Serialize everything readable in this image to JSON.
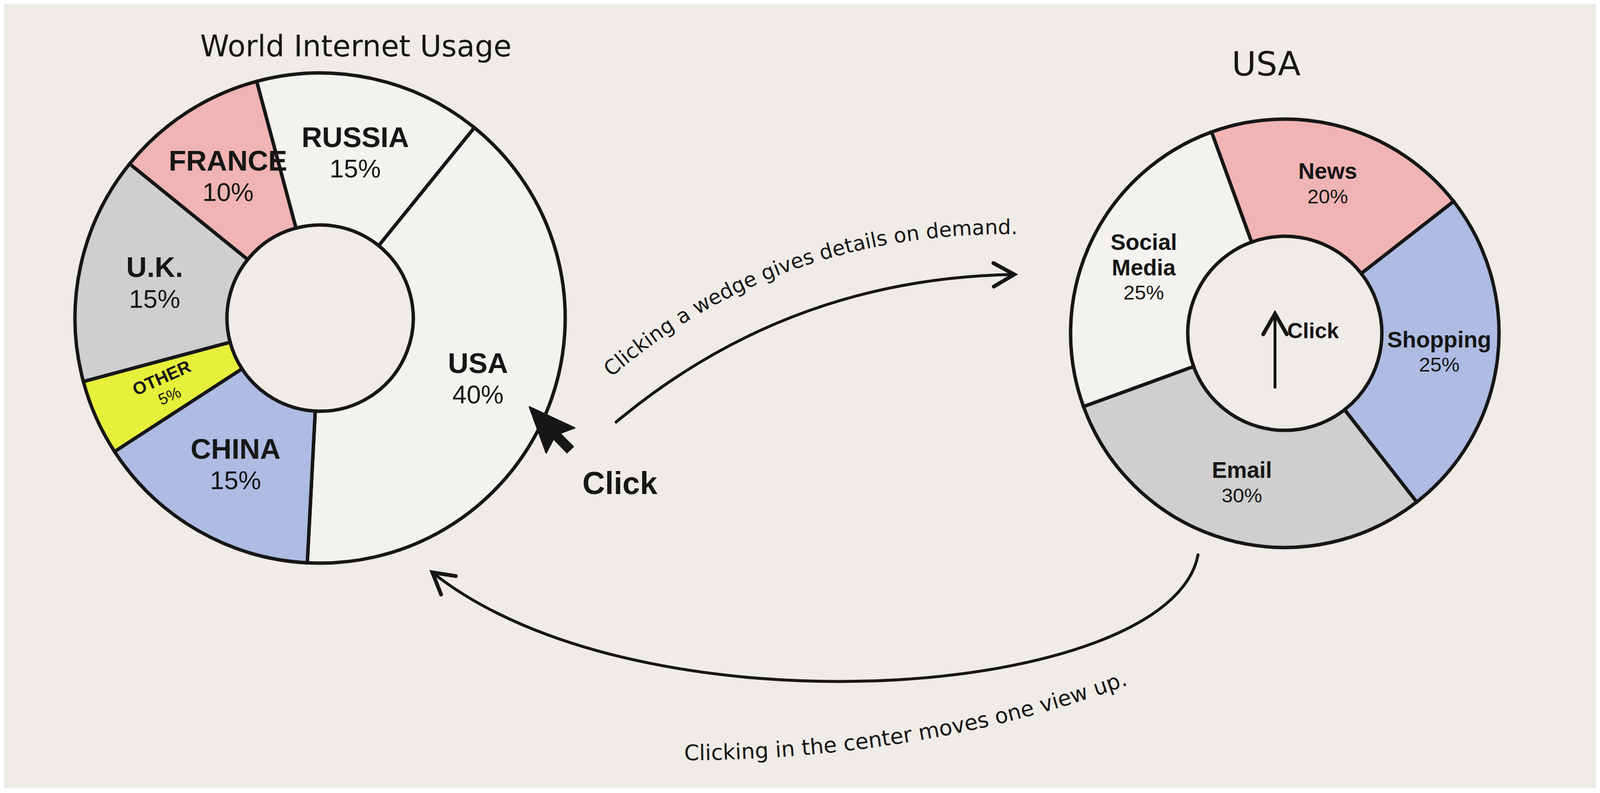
{
  "chart_data": [
    {
      "type": "donut",
      "title": "World Internet Usage",
      "categories": [
        "RUSSIA",
        "USA",
        "CHINA",
        "OTHER",
        "U.K.",
        "FRANCE"
      ],
      "values": [
        15,
        40,
        15,
        5,
        15,
        10
      ],
      "value_labels": [
        "15%",
        "40%",
        "15%",
        "5%",
        "15%",
        "10%"
      ],
      "colors": [
        "#f4f2ee",
        "#f4f2ee",
        "#aebbe2",
        "#e6f03a",
        "#cfcfcf",
        "#f0b4b4"
      ],
      "data_labels": true,
      "annotations": [
        "Click"
      ]
    },
    {
      "type": "donut",
      "title": "USA",
      "categories": [
        "News",
        "Shopping",
        "Email",
        "Social Media"
      ],
      "values": [
        20,
        25,
        30,
        25
      ],
      "value_labels": [
        "20%",
        "25%",
        "30%",
        "25%"
      ],
      "colors": [
        "#f0b4b4",
        "#aebbe2",
        "#cfcfcf",
        "#f4f2ee"
      ],
      "data_labels": true,
      "annotations": [
        "Click"
      ]
    }
  ],
  "annotations": [
    "Clicking a wedge gives details on demand.",
    "Clicking in the center moves one view up."
  ]
}
